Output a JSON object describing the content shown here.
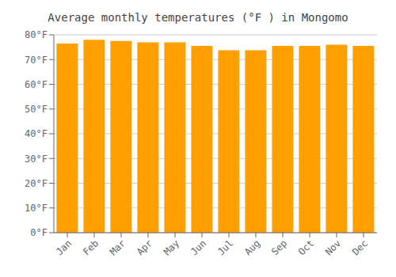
{
  "chart_data": {
    "type": "bar",
    "title": "Average monthly temperatures (°F ) in Mongomo",
    "categories": [
      "Jan",
      "Feb",
      "Mar",
      "Apr",
      "May",
      "Jun",
      "Jul",
      "Aug",
      "Sep",
      "Oct",
      "Nov",
      "Dec"
    ],
    "values": [
      76.5,
      78.0,
      77.5,
      77.0,
      77.0,
      75.5,
      73.8,
      73.8,
      75.5,
      75.5,
      76.0,
      75.5
    ],
    "color": "#FFA000",
    "ylim": [
      0,
      80
    ],
    "yticks": [
      {
        "value": 0,
        "label": "0°F"
      },
      {
        "value": 10,
        "label": "10°F"
      },
      {
        "value": 20,
        "label": "20°F"
      },
      {
        "value": 30,
        "label": "30°F"
      },
      {
        "value": 40,
        "label": "40°F"
      },
      {
        "value": 50,
        "label": "50°F"
      },
      {
        "value": 60,
        "label": "60°F"
      },
      {
        "value": 70,
        "label": "70°F"
      },
      {
        "value": 80,
        "label": "80°F"
      }
    ],
    "grid": true
  }
}
